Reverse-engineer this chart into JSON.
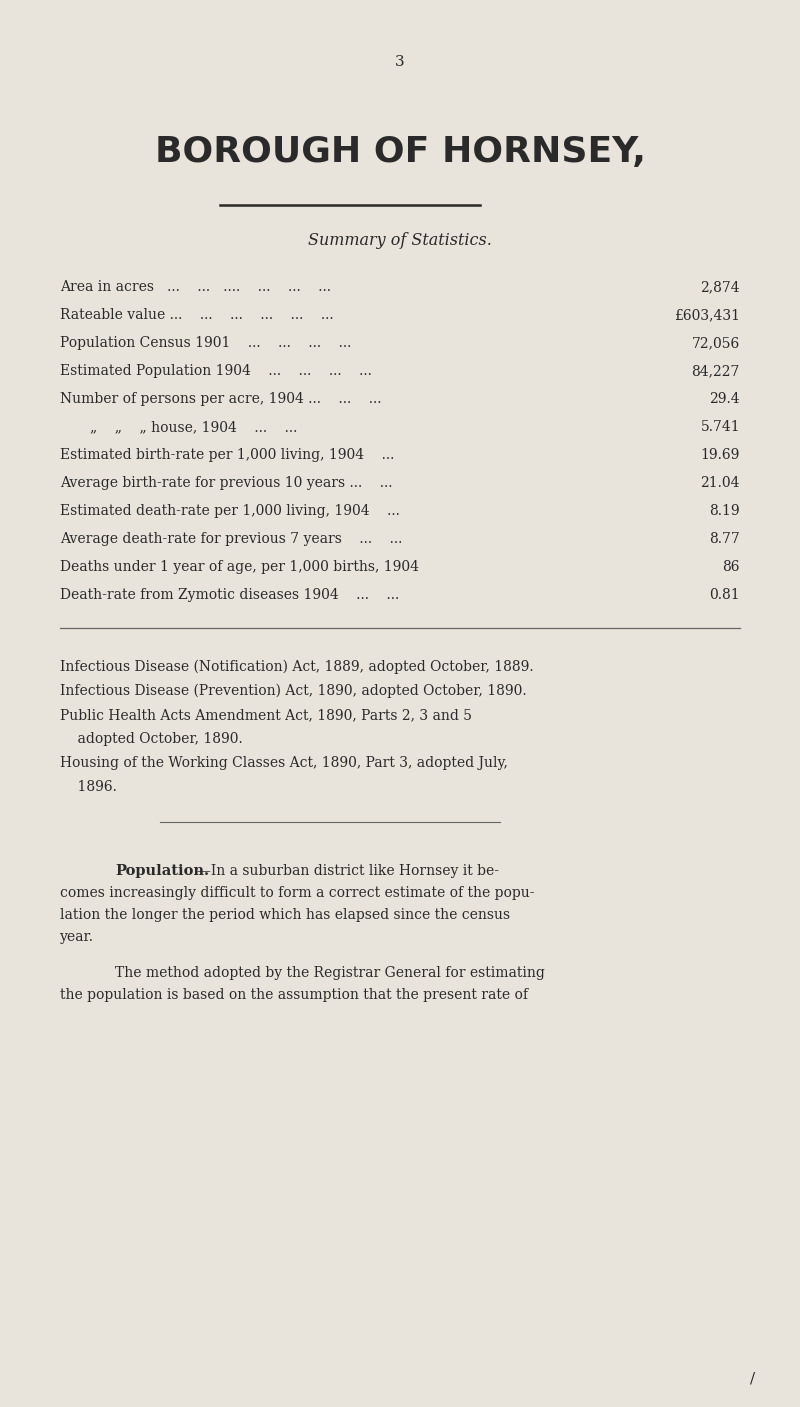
{
  "bg_color": "#e8e4dc",
  "text_color": "#2a2a2a",
  "page_number": "3",
  "title": "BOROUGH OF HORNSEY,",
  "subtitle": "Summary of Statistics.",
  "stats": [
    {
      "label": "Area in acres   ...    ...   ....    ...    ...    ...",
      "value": "2,874"
    },
    {
      "label": "Rateable value ...    ...    ...    ...    ...    ...",
      "value": "£603,431"
    },
    {
      "label": "Population Census 1901    ...    ...    ...    ...",
      "value": "72,056"
    },
    {
      "label": "Estimated Population 1904    ...    ...    ...    ...",
      "value": "84,227"
    },
    {
      "label": "Number of persons per acre, 1904 ...    ...    ...",
      "value": "29.4"
    },
    {
      "label": "„    „    „ house, 1904    ...    ...",
      "value": "5.741",
      "indent": true
    },
    {
      "label": "Estimated birth-rate per 1,000 living, 1904    ...",
      "value": "19.69"
    },
    {
      "label": "Average birth-rate for previous 10 years ...    ...",
      "value": "21.04"
    },
    {
      "label": "Estimated death-rate per 1,000 living, 1904    ...",
      "value": "8.19"
    },
    {
      "label": "Average death-rate for previous 7 years    ...    ...",
      "value": "8.77"
    },
    {
      "label": "Deaths under 1 year of age, per 1,000 births, 1904",
      "value": "86"
    },
    {
      "label": "Death-rate from Zymotic diseases 1904    ...    ...",
      "value": "0.81"
    }
  ],
  "acts": [
    "Infectious Disease (Notification) Act, 1889, adopted October, 1889.",
    "Infectious Disease (Prevention) Act, 1890, adopted October, 1890.",
    "Public Health Acts Amendment Act, 1890, Parts 2, 3 and 5",
    "    adopted October, 1890.",
    "Housing of the Working Classes Act, 1890, Part 3, adopted July,",
    "    1896."
  ],
  "population_heading": "Population.",
  "population_dash": "—In a suburban district like Hornsey it be-",
  "population_lines": [
    "comes increasingly difficult to form a correct estimate of the popu-",
    "lation the longer the period which has elapsed since the census",
    "year."
  ],
  "paragraph2_indent": "The method adopted by the Registrar General for estimating",
  "paragraph2_lines": [
    "the population is based on the assumption that the present rate of"
  ]
}
